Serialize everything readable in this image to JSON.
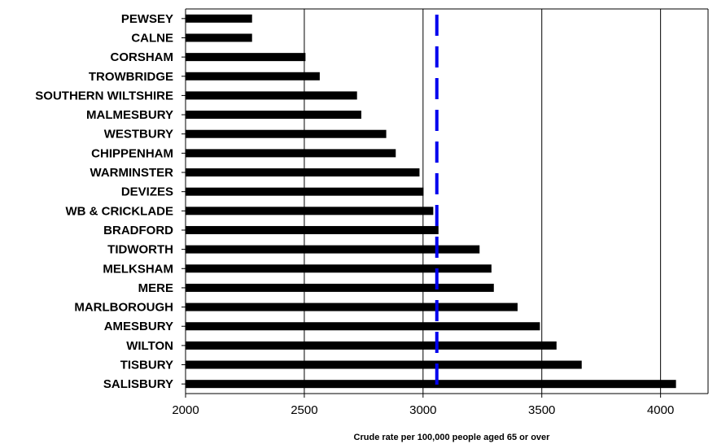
{
  "chart_data": {
    "type": "bar",
    "orientation": "horizontal",
    "categories": [
      "PEWSEY",
      "CALNE",
      "CORSHAM",
      "TROWBRIDGE",
      "SOUTHERN WILTSHIRE",
      "MALMESBURY",
      "WESTBURY",
      "CHIPPENHAM",
      "WARMINSTER",
      "DEVIZES",
      "WB & CRICKLADE",
      "BRADFORD",
      "TIDWORTH",
      "MELKSHAM",
      "MERE",
      "MARLBOROUGH",
      "AMESBURY",
      "WILTON",
      "TISBURY",
      "SALISBURY"
    ],
    "values": [
      2280,
      2280,
      2505,
      2565,
      2722,
      2740,
      2845,
      2885,
      2985,
      3002,
      3043,
      3065,
      3238,
      3288,
      3298,
      3398,
      3492,
      3562,
      3668,
      4065
    ],
    "reference_line": {
      "value": 3058,
      "style": "dashed",
      "color": "#0000ee"
    },
    "bar_color": "#000000",
    "xlabel": "Crude rate per 100,000 people aged 65 or over",
    "xlim": [
      2000,
      4200
    ],
    "xticks": [
      2000,
      2500,
      3000,
      3500,
      4000
    ],
    "grid": "vertical",
    "legend": "none"
  }
}
